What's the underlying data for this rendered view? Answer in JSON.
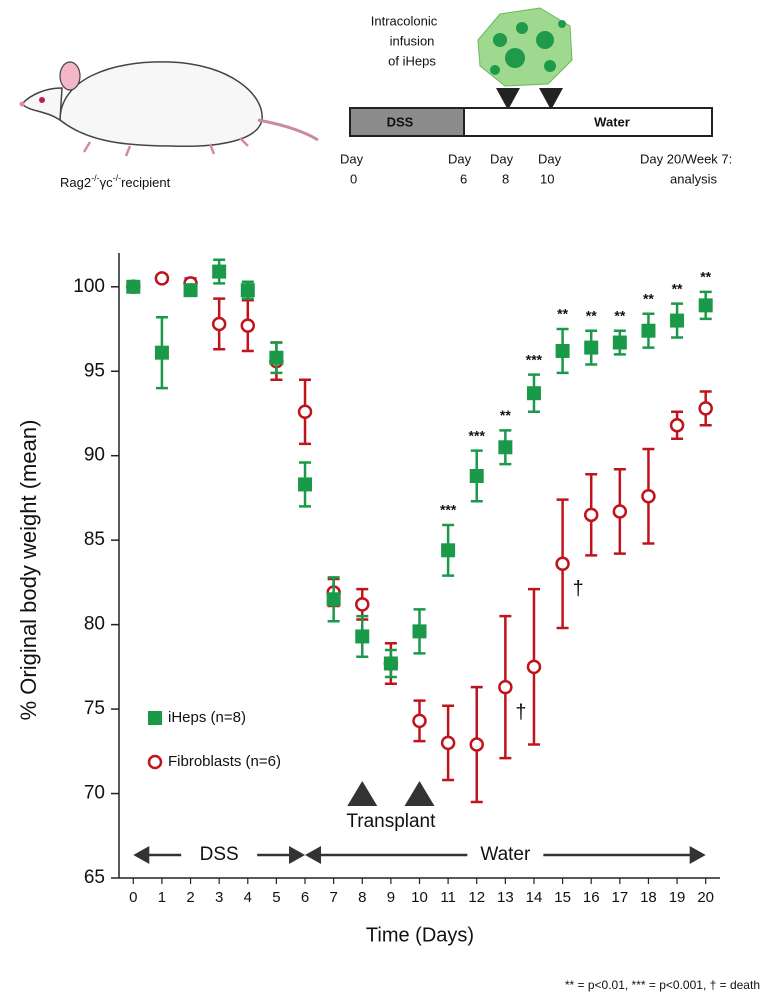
{
  "schematic": {
    "infusion_lines": [
      "Intracolonic",
      "infusion",
      "of iHeps"
    ],
    "dss": "DSS",
    "water": "Water",
    "days": [
      [
        "Day",
        "0"
      ],
      [
        "Day",
        "6"
      ],
      [
        "Day",
        "8"
      ],
      [
        "Day",
        "10"
      ],
      [
        "Day 20/Week 7:",
        "analysis"
      ]
    ],
    "recipient": [
      "Rag2",
      "-/-",
      "γc",
      "-/-",
      "recipient"
    ]
  },
  "chart_data": {
    "type": "errorbar",
    "y_label": "% Original body weight (mean)",
    "x_label": "Time (Days)",
    "x": [
      0,
      1,
      2,
      3,
      4,
      5,
      6,
      7,
      8,
      9,
      10,
      11,
      12,
      13,
      14,
      15,
      16,
      17,
      18,
      19,
      20
    ],
    "xlim": [
      -0.5,
      20.5
    ],
    "xticks": [
      0,
      1,
      2,
      3,
      4,
      5,
      6,
      7,
      8,
      9,
      10,
      11,
      12,
      13,
      14,
      15,
      16,
      17,
      18,
      19,
      20
    ],
    "ylim": [
      65,
      102
    ],
    "yticks": [
      65,
      70,
      75,
      80,
      85,
      90,
      95,
      100
    ],
    "series": [
      {
        "name": "iHeps (n=8)",
        "color": "#1a9a48",
        "marker": "square",
        "values": [
          100,
          96.1,
          99.8,
          100.9,
          99.8,
          95.8,
          88.3,
          81.5,
          79.3,
          77.7,
          79.6,
          84.4,
          88.8,
          90.5,
          93.7,
          96.2,
          96.4,
          96.7,
          97.4,
          98.0,
          98.9
        ],
        "errors": [
          0,
          2.1,
          0.3,
          0.7,
          0.5,
          0.9,
          1.3,
          1.3,
          1.2,
          0.8,
          1.3,
          1.5,
          1.5,
          1.0,
          1.1,
          1.3,
          1.0,
          0.7,
          1.0,
          1.0,
          0.8
        ]
      },
      {
        "name": "Fibroblasts (n=6)",
        "color": "#c0141c",
        "marker": "circle",
        "values": [
          100,
          100.5,
          100.2,
          97.8,
          97.7,
          95.6,
          92.6,
          81.9,
          81.2,
          77.7,
          74.3,
          73.0,
          72.9,
          76.3,
          77.5,
          83.6,
          86.5,
          86.7,
          87.6,
          91.8,
          92.8
        ],
        "errors": [
          0,
          0.2,
          0.3,
          1.5,
          1.5,
          1.1,
          1.9,
          0.8,
          0.9,
          1.2,
          1.2,
          2.2,
          3.4,
          4.2,
          4.6,
          3.8,
          2.4,
          2.5,
          2.8,
          0.8,
          1.0
        ]
      }
    ],
    "significance": [
      null,
      null,
      null,
      null,
      null,
      null,
      null,
      null,
      null,
      null,
      null,
      "***",
      "***",
      "**",
      "***",
      "**",
      "**",
      "**",
      "**",
      "**",
      "**"
    ],
    "deaths": [
      {
        "day": 13,
        "label": "†"
      },
      {
        "day": 15,
        "label": "†"
      }
    ],
    "phases": [
      {
        "label": "DSS",
        "start": 0,
        "end": 6
      },
      {
        "label": "Water",
        "start": 6,
        "end": 20
      }
    ],
    "transplant": {
      "label": "Transplant",
      "days": [
        8,
        10
      ]
    },
    "footnote": "** = p<0.01, *** = p<0.001, † = death"
  }
}
